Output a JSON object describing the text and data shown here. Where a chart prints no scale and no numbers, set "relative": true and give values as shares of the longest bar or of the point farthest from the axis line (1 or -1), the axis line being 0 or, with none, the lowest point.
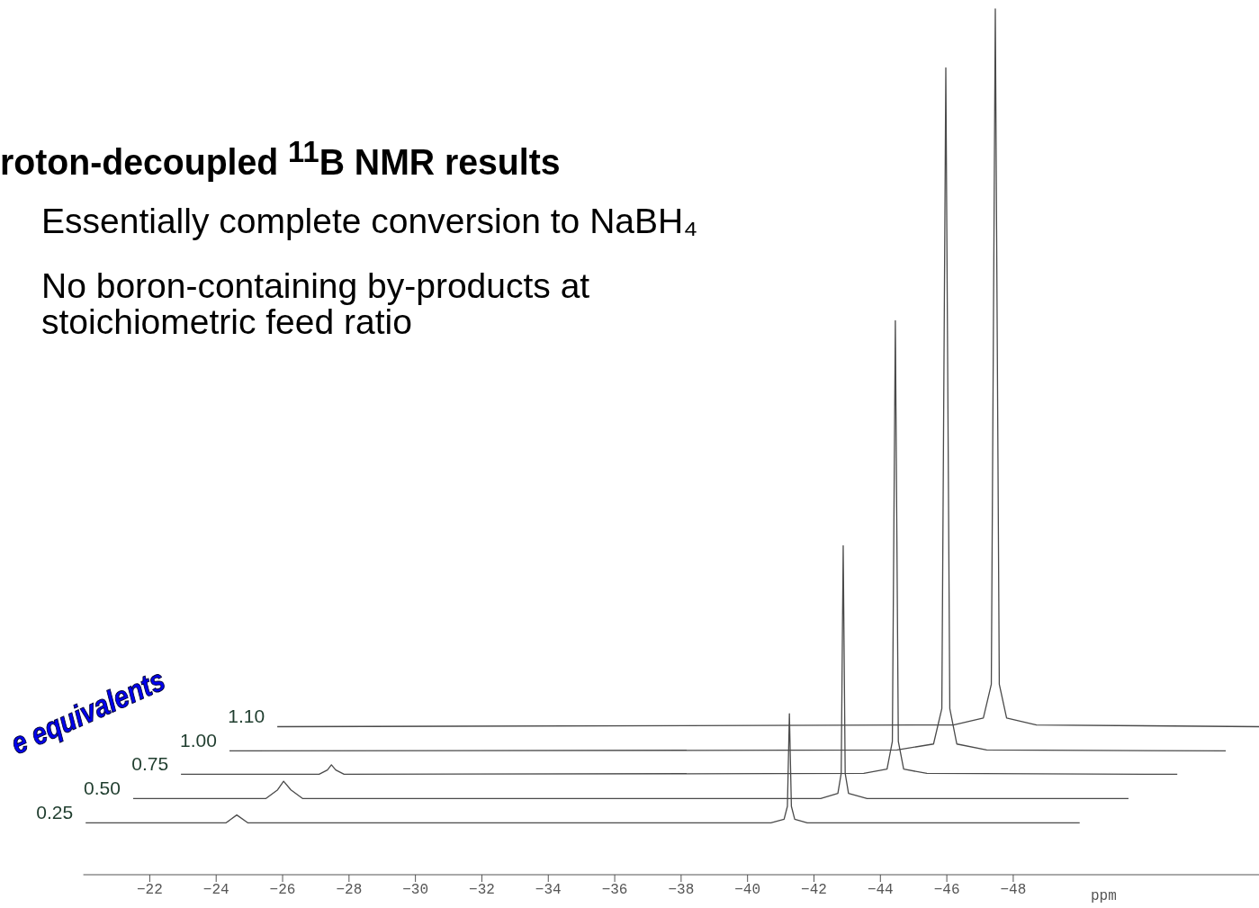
{
  "chart_data": {
    "type": "line",
    "relative": true,
    "title": "roton-decoupled $^{11}$B NMR results",
    "annotations": [
      "Essentially complete conversion to NaBH₄",
      "No boron-containing by-products at\nstoichiometric feed ratio"
    ],
    "legend_title": "e equivalents",
    "xlabel": "ppm",
    "xlim": [
      -20,
      -55.4
    ],
    "xticks": [
      -22,
      -24,
      -26,
      -28,
      -30,
      -32,
      -34,
      -36,
      -38,
      -40,
      -42,
      -44,
      -46,
      -48
    ],
    "marker": "none",
    "grid": false,
    "series": [
      {
        "name": "0.25",
        "color": "#4a4a4a",
        "x": [
          -20.07,
          -24.3,
          -24.62,
          -24.95,
          -40.7,
          -41.1,
          -41.2,
          -41.26,
          -41.32,
          -41.42,
          -41.8,
          -50.0
        ],
        "values": [
          0.06,
          0.06,
          0.069,
          0.06,
          0.06,
          0.064,
          0.079,
          0.186,
          0.079,
          0.064,
          0.06,
          0.06
        ]
      },
      {
        "name": "0.50",
        "color": "#4a4a4a",
        "x": [
          -21.5,
          -25.5,
          -25.85,
          -26.03,
          -26.25,
          -26.6,
          -42.2,
          -42.72,
          -42.82,
          -42.88,
          -42.94,
          -43.04,
          -43.6,
          -51.47
        ],
        "values": [
          0.088,
          0.088,
          0.098,
          0.108,
          0.098,
          0.088,
          0.088,
          0.094,
          0.117,
          0.38,
          0.117,
          0.094,
          0.088,
          0.088
        ]
      },
      {
        "name": "0.75",
        "color": "#4a4a4a",
        "x": [
          -22.94,
          -27.1,
          -27.35,
          -27.47,
          -27.6,
          -27.85,
          -43.5,
          -44.2,
          -44.36,
          -44.45,
          -44.54,
          -44.7,
          -45.4,
          -52.94
        ],
        "values": [
          0.116,
          0.116,
          0.121,
          0.127,
          0.121,
          0.116,
          0.117,
          0.122,
          0.154,
          0.64,
          0.154,
          0.122,
          0.117,
          0.116
        ]
      },
      {
        "name": "1.00",
        "color": "#4a4a4a",
        "x": [
          -24.4,
          -44.5,
          -45.6,
          -45.85,
          -45.97,
          -46.09,
          -46.3,
          -47.2,
          -54.4
        ],
        "values": [
          0.143,
          0.144,
          0.151,
          0.192,
          0.932,
          0.192,
          0.151,
          0.144,
          0.143
        ]
      },
      {
        "name": "1.10",
        "color": "#4a4a4a",
        "x": [
          -25.84,
          -46.2,
          -47.1,
          -47.34,
          -47.46,
          -47.58,
          -47.8,
          -48.7,
          -55.4
        ],
        "values": [
          0.171,
          0.173,
          0.181,
          0.22,
          1,
          0.22,
          0.181,
          0.173,
          0.171
        ]
      }
    ]
  }
}
